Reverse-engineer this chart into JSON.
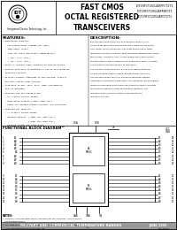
{
  "title_main": "FAST CMOS\nOCTAL REGISTERED\nTRANSCEIVERS",
  "part_numbers": "IDT29FCT2052ATPFCT2T1\nIDT29FCT2052APFBFCT1\nIDT29FCT2052ATDT2T1",
  "features_title": "FEATURES:",
  "description_title": "DESCRIPTION:",
  "functional_block_title": "FUNCTIONAL BLOCK DIAGRAM",
  "bottom_bar": "MILITARY AND COMMERCIAL TEMPERATURE RANGES",
  "bottom_right": "JUNE 1999",
  "company": "Integrated Device Technology, Inc.",
  "bg_color": "#ffffff",
  "features": [
    "• Equivalent features:",
    "  - Low input/output leakage 1μA (max.)",
    "  - CMOS power levels",
    "  - True TTL input and output compatibility",
    "    • VOH = 2.7V (typ.)",
    "    • VOL = 0.5V (typ.)",
    "• Meets or exceeds JEDEC standard 18 specifications",
    "• Product available in Radiation 1 source and Radiation",
    "  Enhanced versions",
    "• Military product compliant to MIL-STD-883, Class B",
    "  and DESC listed (dual marked)",
    "• Available in SNT, SOIC, PLCC, CERP, DIP/CERPACK",
    "  and LCC packages",
    "• Features the IDT Standard Bus:",
    "  - B, C and G control grades",
    "  - High drive outputs (-64mA, 48mA typ.)",
    "  - Power off disable outputs prevent 'bus insertion'",
    "• Featured for IDT54FCT:",
    "  - A, B and G system grades",
    "  - Receive outputs  (-48mA typ, 32mA typ.)",
    "                     (-64mA typ, 64mA typ.)",
    "  - Reduced system switching noise"
  ],
  "desc_lines": [
    "The IDT29FCT2052T/FCT2T1 and IDT29FCT2052AT/FCT-",
    "CT are 8-bit registered transceivers built using an advanced",
    "dual metal CMOS technology. Two 8-bit back-to-back regis-",
    "tered simultaneous driving in both directions between two collec-",
    "tions buses. Separate clock, clock-enable and 3-state output",
    "enable controls are provided for each direction. Both A outputs",
    "and B outputs are guaranteed to sink 64mA.",
    "The IDT29FCT2052T/FCT2T1 is a plug-in replacement for",
    "S1 bus inverting options: prime IDT29FCT2052T/FCT2T1.",
    "The IDT29FCT2052 (BCT-C1) has balanced-drive outputs",
    "optimized for backplane operation. This advanced process gives",
    "minimal undershoot and controlled output fall times reducing",
    "the need for external series terminating resistors. The",
    "IDT29FCT2052T part is a plug-in replacement for",
    "IDT29FCT-S1 part."
  ],
  "left_pins_top": [
    "A1",
    "A2",
    "A3",
    "A4",
    "A5",
    "A6",
    "A7",
    "A8"
  ],
  "left_pins_bot": [
    "B1",
    "B2",
    "B3",
    "B4",
    "B5",
    "B6",
    "B7",
    "B8"
  ],
  "right_pins_top": [
    "B1",
    "B2",
    "B3",
    "B4",
    "B5",
    "B6",
    "B7",
    "B8"
  ],
  "right_pins_bot": [
    "A1",
    "A2",
    "A3",
    "A4",
    "A5",
    "A6",
    "A7",
    "A8"
  ],
  "pin_nums_left_top": [
    "1",
    "2",
    "3",
    "4",
    "5",
    "6",
    "7",
    "8"
  ],
  "pin_nums_left_bot": [
    "9",
    "10",
    "11",
    "12",
    "13",
    "14",
    "15",
    "16"
  ],
  "pin_nums_right_top": [
    "18",
    "19",
    "20",
    "21",
    "22",
    "23",
    "24",
    "25"
  ],
  "pin_nums_right_bot": [
    "10",
    "11",
    "12",
    "13",
    "14",
    "15",
    "16",
    "17"
  ],
  "ctrl_top_left": "OEA",
  "ctrl_top_mid": "OEB",
  "ctrl_top_pin": "25",
  "ctrl_bot_labels": [
    "CAB",
    "CBA",
    "GN"
  ],
  "notes_line1": "1. Function from package SELECT function per MIL-STD-883, OTP/SSTF/P is",
  "notes_line2": "   the marking option.",
  "notes_line3": "© IDT logo is a registered trademark of Integrated Device Technology, Inc."
}
